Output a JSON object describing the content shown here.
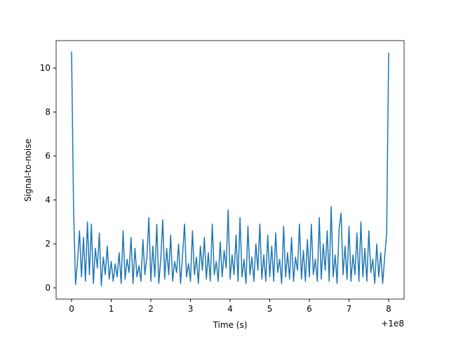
{
  "chart_data": {
    "type": "line",
    "xlabel": "Time (s)",
    "ylabel": "Signal-to-noise",
    "x_offset_label": "+1e8",
    "xlim": [
      -0.39,
      8.39
    ],
    "ylim": [
      -0.51,
      11.25
    ],
    "xticks": [
      0,
      1,
      2,
      3,
      4,
      5,
      6,
      7,
      8
    ],
    "yticks": [
      0,
      2,
      4,
      6,
      8,
      10
    ],
    "x": [
      0,
      0.05,
      0.1,
      0.15,
      0.2,
      0.25,
      0.3,
      0.35,
      0.4,
      0.45,
      0.5,
      0.55,
      0.6,
      0.65,
      0.7,
      0.75,
      0.8,
      0.85,
      0.9,
      0.95,
      1,
      1.05,
      1.1,
      1.15,
      1.2,
      1.25,
      1.3,
      1.35,
      1.4,
      1.45,
      1.5,
      1.55,
      1.6,
      1.65,
      1.7,
      1.75,
      1.8,
      1.85,
      1.9,
      1.95,
      2,
      2.05,
      2.1,
      2.15,
      2.2,
      2.25,
      2.3,
      2.35,
      2.4,
      2.45,
      2.5,
      2.55,
      2.6,
      2.65,
      2.7,
      2.75,
      2.8,
      2.85,
      2.9,
      2.95,
      3,
      3.05,
      3.1,
      3.15,
      3.2,
      3.25,
      3.3,
      3.35,
      3.4,
      3.45,
      3.5,
      3.55,
      3.6,
      3.65,
      3.7,
      3.75,
      3.8,
      3.85,
      3.9,
      3.95,
      4,
      4.05,
      4.1,
      4.15,
      4.2,
      4.25,
      4.3,
      4.35,
      4.4,
      4.45,
      4.5,
      4.55,
      4.6,
      4.65,
      4.7,
      4.75,
      4.8,
      4.85,
      4.9,
      4.95,
      5,
      5.05,
      5.1,
      5.15,
      5.2,
      5.25,
      5.3,
      5.35,
      5.4,
      5.45,
      5.5,
      5.55,
      5.6,
      5.65,
      5.7,
      5.75,
      5.8,
      5.85,
      5.9,
      5.95,
      6,
      6.05,
      6.1,
      6.15,
      6.2,
      6.25,
      6.3,
      6.35,
      6.4,
      6.45,
      6.5,
      6.55,
      6.6,
      6.65,
      6.7,
      6.75,
      6.8,
      6.85,
      6.9,
      6.95,
      7,
      7.05,
      7.1,
      7.15,
      7.2,
      7.25,
      7.3,
      7.35,
      7.4,
      7.45,
      7.5,
      7.55,
      7.6,
      7.65,
      7.7,
      7.75,
      7.8,
      7.85,
      7.9,
      7.95,
      8
    ],
    "series": [
      {
        "color": "#1f77b4",
        "values": [
          10.75,
          3.6,
          0.15,
          1.2,
          2.6,
          0.5,
          2.3,
          0.3,
          3.0,
          0.6,
          2.9,
          0.2,
          1.8,
          0.9,
          2.5,
          0.1,
          1.4,
          0.6,
          1.9,
          0.4,
          1.2,
          0.3,
          1.1,
          0.5,
          1.6,
          0.2,
          2.6,
          0.4,
          1.3,
          0.7,
          2.3,
          0.2,
          1.8,
          0.5,
          1.0,
          0.3,
          2.2,
          0.6,
          1.4,
          3.2,
          0.3,
          1.9,
          0.5,
          2.9,
          0.2,
          1.3,
          3.1,
          0.4,
          1.8,
          0.6,
          2.4,
          0.3,
          1.2,
          0.7,
          2.0,
          0.2,
          1.5,
          2.9,
          0.5,
          1.1,
          0.3,
          2.6,
          0.6,
          1.4,
          0.2,
          1.9,
          0.8,
          2.3,
          0.4,
          1.6,
          0.3,
          2.9,
          0.6,
          1.2,
          0.3,
          2.1,
          0.5,
          1.7,
          0.9,
          3.55,
          0.4,
          1.5,
          0.6,
          2.4,
          0.3,
          3.2,
          0.5,
          1.3,
          0.2,
          2.8,
          0.6,
          1.4,
          0.3,
          2.0,
          0.8,
          2.9,
          0.4,
          1.5,
          0.3,
          2.4,
          0.5,
          1.9,
          0.3,
          2.5,
          0.7,
          1.3,
          0.2,
          2.8,
          0.5,
          1.6,
          0.4,
          2.3,
          0.3,
          1.4,
          0.8,
          2.9,
          0.4,
          1.7,
          0.3,
          2.2,
          0.5,
          2.9,
          0.6,
          1.3,
          0.3,
          3.2,
          0.4,
          2.0,
          0.8,
          2.6,
          0.3,
          3.7,
          0.5,
          1.5,
          0.2,
          2.7,
          3.4,
          0.6,
          1.9,
          0.4,
          2.8,
          0.3,
          1.5,
          0.6,
          2.5,
          0.3,
          3.0,
          0.5,
          1.8,
          0.3,
          2.6,
          0.7,
          1.3,
          0.2,
          2.0,
          0.5,
          1.6,
          0.2,
          1.4,
          2.5,
          10.7
        ]
      }
    ]
  }
}
